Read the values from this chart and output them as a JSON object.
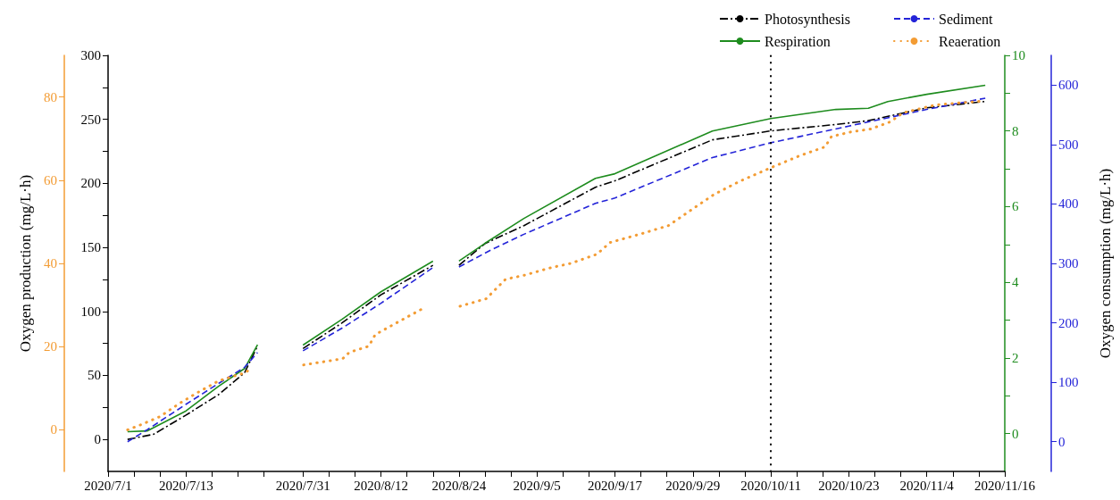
{
  "chart_data": [
    {
      "type": "line",
      "ylabel": "Oxygen production (mg/L·h)",
      "y2label": "Oxygen consumption (mg/L·h)",
      "xlim": [
        "2020-07-01",
        "2020-11-16"
      ],
      "xticks": [
        {
          "value": "2020-07-01",
          "label": "2020/7/1"
        },
        {
          "value": "2020-07-05",
          "label": null
        },
        {
          "value": "2020-07-09",
          "label": null
        },
        {
          "value": "2020-07-13",
          "label": "2020/7/13"
        },
        {
          "value": "2020-07-17",
          "label": null
        },
        {
          "value": "2020-07-21",
          "label": null
        },
        {
          "value": "2020-07-25",
          "label": null
        },
        {
          "value": "2020-07-31",
          "label": "2020/7/31"
        },
        {
          "value": "2020-08-04",
          "label": null
        },
        {
          "value": "2020-08-08",
          "label": null
        },
        {
          "value": "2020-08-12",
          "label": "2020/8/12"
        },
        {
          "value": "2020-08-16",
          "label": null
        },
        {
          "value": "2020-08-20",
          "label": null
        },
        {
          "value": "2020-08-24",
          "label": "2020/8/24"
        },
        {
          "value": "2020-08-28",
          "label": null
        },
        {
          "value": "2020-09-01",
          "label": null
        },
        {
          "value": "2020-09-05",
          "label": "2020/9/5"
        },
        {
          "value": "2020-09-09",
          "label": null
        },
        {
          "value": "2020-09-13",
          "label": null
        },
        {
          "value": "2020-09-17",
          "label": "2020/9/17"
        },
        {
          "value": "2020-09-21",
          "label": null
        },
        {
          "value": "2020-09-25",
          "label": null
        },
        {
          "value": "2020-09-29",
          "label": "2020/9/29"
        },
        {
          "value": "2020-10-03",
          "label": null
        },
        {
          "value": "2020-10-07",
          "label": null
        },
        {
          "value": "2020-10-11",
          "label": "2020/10/11"
        },
        {
          "value": "2020-10-15",
          "label": null
        },
        {
          "value": "2020-10-19",
          "label": null
        },
        {
          "value": "2020-10-23",
          "label": "2020/10/23"
        },
        {
          "value": "2020-10-27",
          "label": null
        },
        {
          "value": "2020-10-31",
          "label": null
        },
        {
          "value": "2020-11-04",
          "label": "2020/11/4"
        },
        {
          "value": "2020-11-08",
          "label": null
        },
        {
          "value": "2020-11-12",
          "label": null
        },
        {
          "value": "2020-11-16",
          "label": "2020/11/16"
        }
      ],
      "ylim": [
        -25,
        300
      ],
      "yticks": [
        0,
        {
          "value": 25,
          "label": null
        },
        50,
        {
          "value": 75,
          "label": null
        },
        100,
        {
          "value": 125,
          "label": null
        },
        150,
        {
          "value": 175,
          "label": null
        },
        200,
        {
          "value": 225,
          "label": null
        },
        250,
        {
          "value": 275,
          "label": null
        },
        300
      ],
      "y3lim": [
        -1,
        10
      ],
      "y3ticks": [
        0,
        {
          "value": 1,
          "label": null
        },
        2,
        {
          "value": 3,
          "label": null
        },
        4,
        {
          "value": 5,
          "label": null
        },
        6,
        {
          "value": 7,
          "label": null
        },
        8,
        {
          "value": 9,
          "label": null
        },
        10
      ],
      "y2lim": [
        -50,
        650
      ],
      "y2ticks": [
        0,
        100,
        200,
        300,
        400,
        500,
        600
      ],
      "series": [
        {
          "name": "Photosynthesis",
          "color": "#000000",
          "line_style": "dashdot",
          "x": [
            "2020-07-04",
            "2020-07-08",
            "2020-07-13",
            "2020-07-18",
            "2020-07-22",
            "2020-07-24",
            "2020-07-26",
            "2020-07-31",
            "2020-08-06",
            "2020-08-12",
            "2020-08-20",
            "2020-08-21",
            "2020-08-24",
            "2020-08-28",
            "2020-09-03",
            "2020-09-14",
            "2020-09-17",
            "2020-10-02",
            "2020-10-11",
            "2020-10-21",
            "2020-10-26",
            "2020-11-04",
            "2020-11-13"
          ],
          "values": [
            0,
            4,
            19,
            35,
            52,
            73,
            null,
            71,
            91,
            113,
            136,
            null,
            136,
            153,
            167,
            197,
            202,
            234,
            241,
            246,
            249,
            259,
            264
          ]
        },
        {
          "name": "Respiration",
          "color": "#1e8c1e",
          "axis": "y3",
          "line_style": "solid",
          "x": [
            "2020-07-04",
            "2020-07-07",
            "2020-07-13",
            "2020-07-18",
            "2020-07-22",
            "2020-07-24",
            "2020-07-26",
            "2020-07-31",
            "2020-08-06",
            "2020-08-12",
            "2020-08-20",
            "2020-08-21",
            "2020-08-24",
            "2020-08-28",
            "2020-09-03",
            "2020-09-14",
            "2020-09-17",
            "2020-10-02",
            "2020-10-11",
            "2020-10-21",
            "2020-10-26",
            "2020-10-29",
            "2020-11-04",
            "2020-11-13"
          ],
          "values": [
            0.05,
            0.07,
            0.6,
            1.25,
            1.72,
            2.35,
            null,
            2.34,
            3.02,
            3.75,
            4.56,
            null,
            4.56,
            5.03,
            5.69,
            6.75,
            6.87,
            8.0,
            8.33,
            8.57,
            8.6,
            8.78,
            8.97,
            9.21
          ]
        },
        {
          "name": "Sediment",
          "color": "#2424d8",
          "axis": "y2",
          "line_style": "dashed",
          "x": [
            "2020-07-04",
            "2020-07-07",
            "2020-07-13",
            "2020-07-18",
            "2020-07-22",
            "2020-07-24",
            "2020-07-26",
            "2020-07-31",
            "2020-08-06",
            "2020-08-12",
            "2020-08-20",
            "2020-08-21",
            "2020-08-24",
            "2020-08-29",
            "2020-09-03",
            "2020-09-14",
            "2020-09-17",
            "2020-10-02",
            "2020-10-11",
            "2020-10-23",
            "2020-11-04",
            "2020-11-13"
          ],
          "values": [
            0,
            20,
            63,
            98,
            125,
            150,
            null,
            153,
            191,
            233,
            293,
            null,
            294,
            323,
            349,
            401,
            410,
            478,
            503,
            531,
            559,
            578
          ]
        }
      ],
      "ref_lines": [
        {
          "axis": "x",
          "value": "2020-10-11",
          "color": "#000000",
          "line_style": "dotted"
        }
      ],
      "legend": "top right",
      "marker": "none",
      "grid": false
    },
    {
      "type": "line",
      "xlim": [
        "2020-07-01",
        "2020-11-16"
      ],
      "ylim": [
        -10,
        90
      ],
      "yticks": [
        0,
        20,
        40,
        60,
        80
      ],
      "tick_labels": "y",
      "series": [
        {
          "name": "Reaeration",
          "color": "#f39c34",
          "line_style": "dotted",
          "x": [
            "2020-07-04",
            "2020-07-06",
            "2020-07-09",
            "2020-07-12",
            "2020-07-15",
            "2020-07-18",
            "2020-07-22",
            "2020-07-23",
            "2020-07-26",
            "2020-07-31",
            "2020-08-06",
            "2020-08-07",
            "2020-08-10",
            "2020-08-11",
            "2020-08-14",
            "2020-08-18",
            "2020-08-21",
            "2020-08-24",
            "2020-08-28",
            "2020-08-31",
            "2020-09-03",
            "2020-09-07",
            "2020-09-10",
            "2020-09-14",
            "2020-09-16",
            "2020-09-21",
            "2020-09-25",
            "2020-09-29",
            "2020-10-02",
            "2020-10-06",
            "2020-10-11",
            "2020-10-15",
            "2020-10-19",
            "2020-10-20",
            "2020-10-23",
            "2020-10-26",
            "2020-10-29",
            "2020-10-31",
            "2020-11-05",
            "2020-11-12"
          ],
          "values": [
            0,
            1.2,
            3.2,
            6.4,
            9.2,
            11.8,
            13.7,
            14.8,
            null,
            15.6,
            17.1,
            18.6,
            20.1,
            22.9,
            25.5,
            28.9,
            null,
            29.7,
            31.5,
            36.2,
            37.2,
            39.0,
            40.0,
            42.2,
            45.0,
            47.2,
            49.1,
            53.4,
            56.6,
            59.8,
            63.2,
            65.8,
            68.0,
            70.5,
            71.6,
            72.3,
            74.0,
            76.2,
            78.1,
            79.0
          ]
        }
      ],
      "legend": "top right",
      "marker": "none",
      "grid": false
    }
  ]
}
